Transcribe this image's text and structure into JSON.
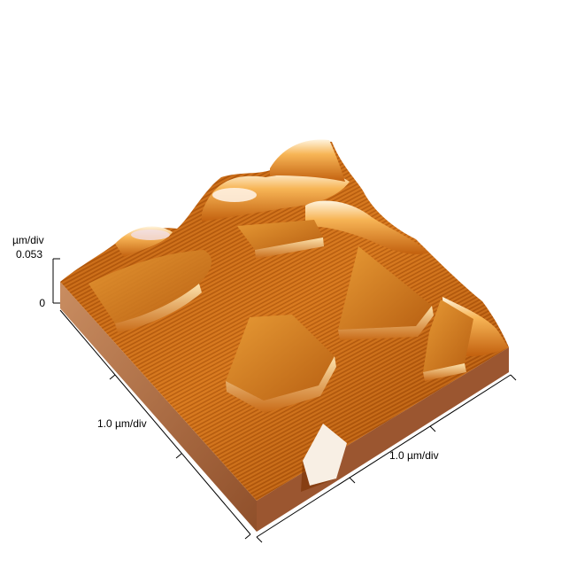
{
  "z_axis": {
    "unit_label": "µm/div",
    "max_label": "0.053",
    "min_label": "0"
  },
  "x_axis": {
    "scale_label": "1.0 µm/div"
  },
  "y_axis": {
    "scale_label": "1.0 µm/div"
  },
  "colors": {
    "surface_dark": "#8a3a00",
    "surface_mid": "#d06a10",
    "surface_light": "#f5b04a",
    "highlight": "#fff2d6",
    "base_side": "#a8643a"
  }
}
